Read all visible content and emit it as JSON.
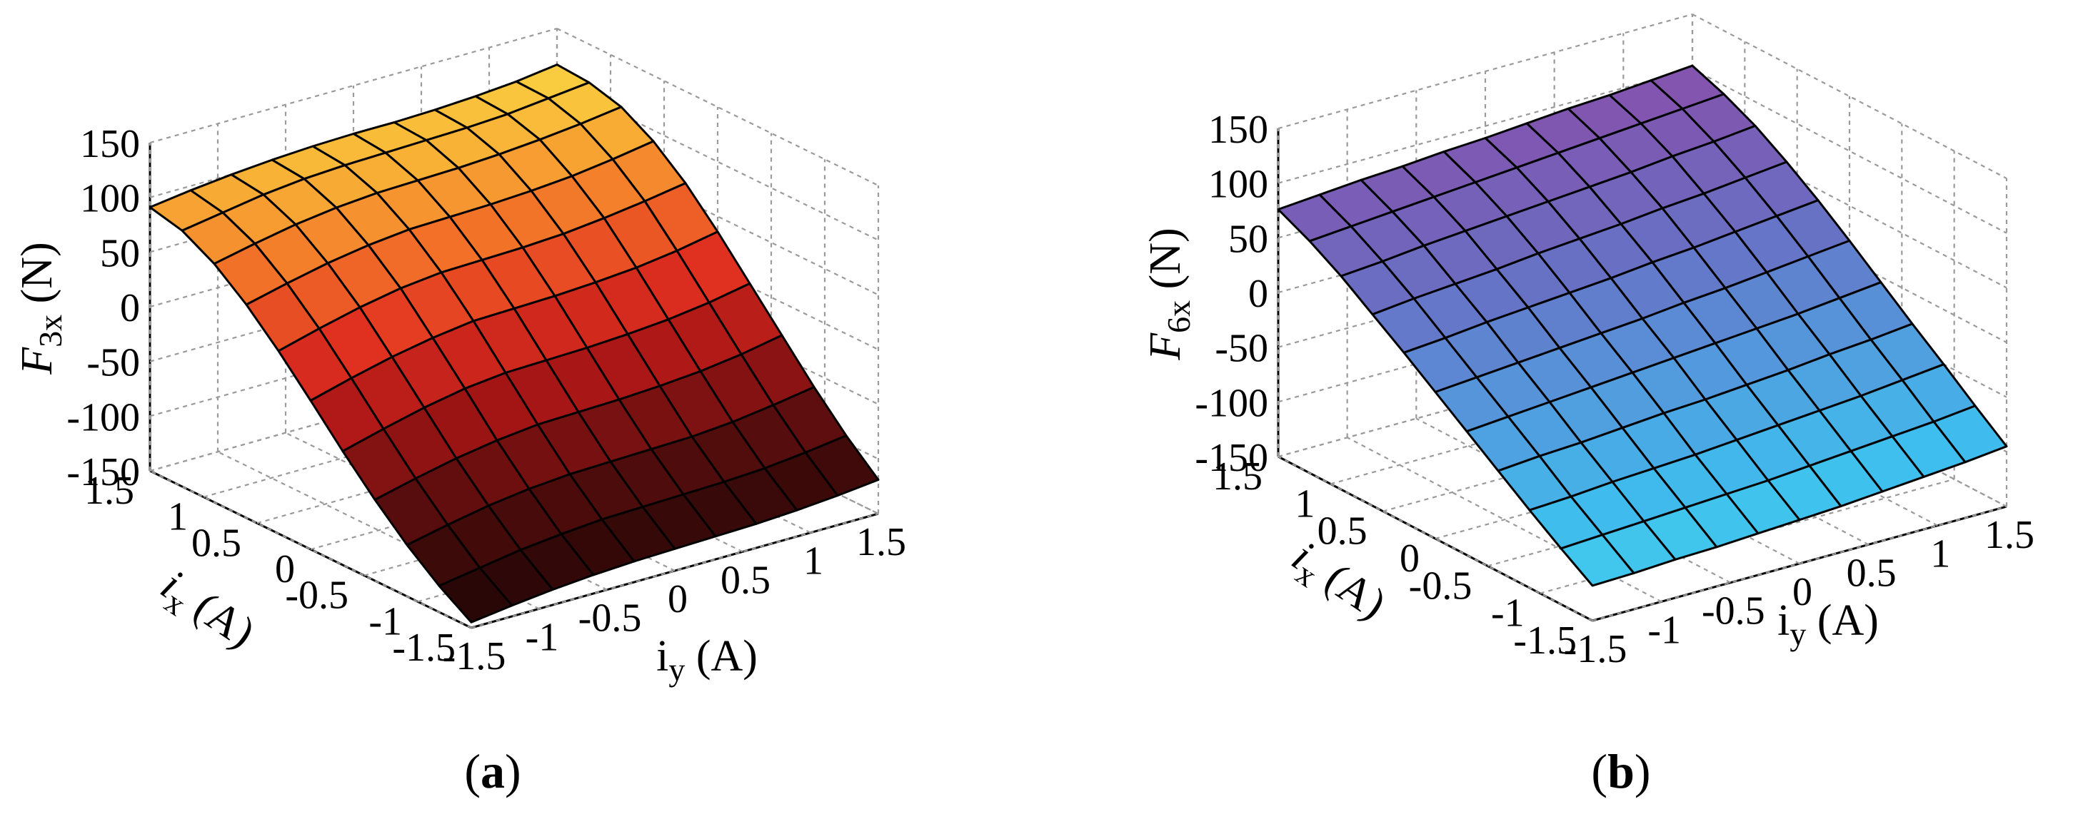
{
  "figure": {
    "panels": [
      {
        "label": "a",
        "z_axis": {
          "symbol": "F",
          "subscript": "3x",
          "unit": " (N)"
        },
        "x_axis": {
          "symbol": "i",
          "subscript": "x",
          "unit": " (A)"
        },
        "y_axis": {
          "symbol": "i",
          "subscript": "y",
          "unit": " (A)"
        },
        "colormap": "hot"
      },
      {
        "label": "b",
        "z_axis": {
          "symbol": "F",
          "subscript": "6x",
          "unit": " (N)"
        },
        "x_axis": {
          "symbol": "i",
          "subscript": "x",
          "unit": " (A)"
        },
        "y_axis": {
          "symbol": "i",
          "subscript": "y",
          "unit": " (A)"
        },
        "colormap": "cool-purple"
      }
    ]
  },
  "chart_data": [
    {
      "type": "surface",
      "panel": "a",
      "title": "",
      "xlabel": "ix (A)",
      "ylabel": "iy (A)",
      "zlabel": "F3x (N)",
      "xlim": [
        -1.5,
        1.5
      ],
      "ylim": [
        -1.5,
        1.5
      ],
      "zlim": [
        -150,
        150
      ],
      "x_ticks": [
        "-1.5",
        "-1",
        "-0.5",
        "0",
        "0.5",
        "1",
        "1.5"
      ],
      "y_ticks": [
        "-1.5",
        "-1",
        "-0.5",
        "0",
        "0.5",
        "1",
        "1.5"
      ],
      "z_ticks": [
        "-150",
        "-100",
        "-50",
        "0",
        "50",
        "100",
        "150"
      ],
      "grid": true,
      "x": [
        -1.5,
        -1.2,
        -0.9,
        -0.6,
        -0.3,
        0,
        0.3,
        0.6,
        0.9,
        1.2,
        1.5
      ],
      "y": [
        -1.5,
        -1.2,
        -0.9,
        -0.6,
        -0.3,
        0,
        0.3,
        0.6,
        0.9,
        1.2,
        1.5
      ],
      "z": [
        [
          -145,
          -140,
          -136,
          -133,
          -131,
          -130,
          -129,
          -128,
          -126,
          -123,
          -119
        ],
        [
          -126,
          -120,
          -114,
          -110,
          -107,
          -106,
          -105,
          -104,
          -102,
          -98,
          -93
        ],
        [
          -103,
          -95,
          -88,
          -83,
          -80,
          -79,
          -78,
          -77,
          -74,
          -69,
          -63
        ],
        [
          -76,
          -67,
          -59,
          -53,
          -49,
          -48,
          -47,
          -45,
          -42,
          -37,
          -30
        ],
        [
          -46,
          -36,
          -27,
          -20,
          -16,
          -15,
          -14,
          -12,
          -9,
          -4,
          3
        ],
        [
          -14,
          -4,
          5,
          12,
          17,
          18,
          19,
          21,
          24,
          29,
          36
        ],
        [
          17,
          27,
          36,
          43,
          47,
          48,
          49,
          51,
          55,
          60,
          66
        ],
        [
          45,
          54,
          62,
          68,
          72,
          73,
          74,
          76,
          79,
          84,
          90
        ],
        [
          68,
          76,
          83,
          88,
          91,
          92,
          93,
          95,
          98,
          102,
          107
        ],
        [
          84,
          90,
          96,
          100,
          102,
          103,
          104,
          105,
          107,
          111,
          115
        ],
        [
          91,
          96,
          100,
          103,
          105,
          106,
          106,
          107,
          109,
          112,
          117
        ]
      ]
    },
    {
      "type": "surface",
      "panel": "b",
      "title": "",
      "xlabel": "ix (A)",
      "ylabel": "iy (A)",
      "zlabel": "F6x (N)",
      "xlim": [
        -1.5,
        1.5
      ],
      "ylim": [
        -1.5,
        1.5
      ],
      "zlim": [
        -150,
        150
      ],
      "x_ticks": [
        "-1.5",
        "-1",
        "-0.5",
        "0",
        "0.5",
        "1",
        "1.5"
      ],
      "y_ticks": [
        "-1.5",
        "-1",
        "-0.5",
        "0",
        "0.5",
        "1",
        "1.5"
      ],
      "z_ticks": [
        "-150",
        "-100",
        "-50",
        "0",
        "50",
        "100",
        "150"
      ],
      "grid": true,
      "x": [
        -1.5,
        -1.2,
        -0.9,
        -0.6,
        -0.3,
        0,
        0.3,
        0.6,
        0.9,
        1.2,
        1.5
      ],
      "y": [
        -1.5,
        -1.2,
        -0.9,
        -0.6,
        -0.3,
        0,
        0.3,
        0.6,
        0.9,
        1.2,
        1.5
      ],
      "z": [
        [
          -118,
          -117,
          -115,
          -114,
          -112,
          -110,
          -108,
          -105,
          -102,
          -99,
          -95
        ],
        [
          -99,
          -97,
          -95,
          -93,
          -91,
          -89,
          -86,
          -83,
          -80,
          -77,
          -73
        ],
        [
          -79,
          -77,
          -74,
          -72,
          -70,
          -67,
          -64,
          -61,
          -58,
          -54,
          -50
        ],
        [
          -58,
          -55,
          -53,
          -50,
          -47,
          -45,
          -42,
          -39,
          -35,
          -32,
          -28
        ],
        [
          -37,
          -34,
          -31,
          -28,
          -25,
          -22,
          -19,
          -16,
          -13,
          -9,
          -5
        ],
        [
          -16,
          -13,
          -10,
          -7,
          -4,
          -1,
          3,
          6,
          10,
          14,
          18
        ],
        [
          5,
          8,
          12,
          15,
          18,
          21,
          25,
          28,
          32,
          36,
          40
        ],
        [
          25,
          29,
          32,
          35,
          39,
          42,
          45,
          49,
          52,
          56,
          60
        ],
        [
          45,
          48,
          52,
          55,
          58,
          61,
          64,
          67,
          71,
          74,
          78
        ],
        [
          62,
          65,
          68,
          71,
          74,
          77,
          80,
          83,
          86,
          89,
          92
        ],
        [
          76,
          79,
          82,
          84,
          87,
          89,
          92,
          95,
          97,
          100,
          103
        ]
      ]
    }
  ]
}
